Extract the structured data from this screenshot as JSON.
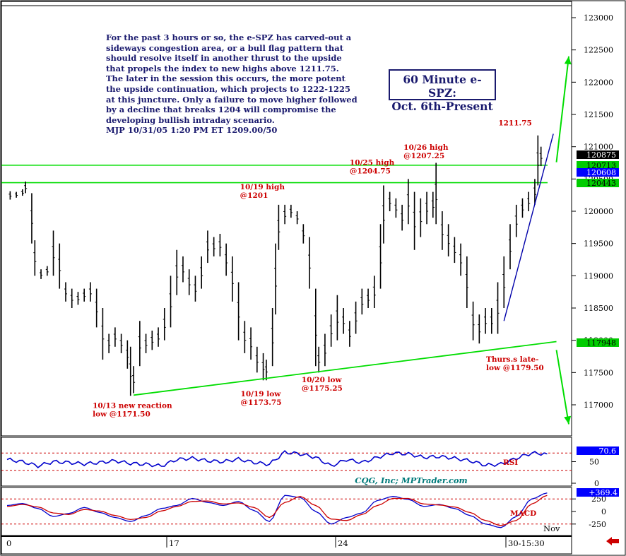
{
  "commentary": {
    "text": "For the past 3 hours or so, the e-SPZ has carved-out a\nsideways congestion area, or a bull flag pattern that\nshould resolve itself in another thrust to the upside\nthat propels the index to new highs above 1211.75.\nThe later in the session this occurs, the more potent\nthe upside continuation, which projects to 1222-1225\nat this juncture. Only a failure to move higher followed\nby a decline that breaks 1204 will compromise the\ndeveloping bullish intraday scenario.\nMJP  10/31/05 1:20 PM ET 1209.00/50"
  },
  "title_box": {
    "line1": "60 Minute e-SPZ:",
    "line2": "Oct. 6th-Present"
  },
  "credit": "CQG, Inc; MPTrader.com",
  "colors": {
    "price_bars": "#000000",
    "trendline_green": "#00dd00",
    "trendline_blue": "#0000aa",
    "annotation_red": "#cc0000",
    "rsi_line": "#0000cc",
    "macd_line": "#0000cc",
    "macd_signal": "#cc0000",
    "label_black": "#000000",
    "label_green": "#00cc00",
    "label_blue": "#0000ff",
    "axis_border": "#000000"
  },
  "chart_data": [
    {
      "type": "ohlc",
      "name": "60 Minute e-SPZ",
      "yaxis": {
        "ylim": [
          116800,
          123200
        ],
        "ticks": [
          117000,
          117500,
          118000,
          118500,
          119000,
          119500,
          120000,
          120500,
          121000,
          121500,
          122000,
          122500,
          123000
        ],
        "tick_labels": [
          "117000",
          "117500",
          "118000",
          "118500",
          "119000",
          "119500",
          "120000",
          "120500",
          "121000",
          "121500",
          "122000",
          "122500",
          "123000"
        ]
      },
      "xaxis": {
        "tick_labels": [
          "0",
          "17",
          "24",
          "30-15:30",
          "Nov"
        ],
        "range": [
          0,
          182
        ]
      },
      "bars": [
        {
          "x": 1,
          "h": 120310,
          "l": 120180
        },
        {
          "x": 3,
          "h": 120300,
          "l": 120210
        },
        {
          "x": 5,
          "h": 120340,
          "l": 120240
        },
        {
          "x": 6,
          "h": 120460,
          "l": 120280
        },
        {
          "x": 8,
          "h": 120280,
          "l": 119500
        },
        {
          "x": 9,
          "h": 119550,
          "l": 119000
        },
        {
          "x": 11,
          "h": 119100,
          "l": 118950
        },
        {
          "x": 13,
          "h": 119150,
          "l": 119000
        },
        {
          "x": 15,
          "h": 119700,
          "l": 119000
        },
        {
          "x": 17,
          "h": 119500,
          "l": 118800
        },
        {
          "x": 19,
          "h": 118900,
          "l": 118600
        },
        {
          "x": 21,
          "h": 118800,
          "l": 118500
        },
        {
          "x": 23,
          "h": 118750,
          "l": 118550
        },
        {
          "x": 25,
          "h": 118800,
          "l": 118600
        },
        {
          "x": 27,
          "h": 118900,
          "l": 118600
        },
        {
          "x": 29,
          "h": 118800,
          "l": 118200
        },
        {
          "x": 31,
          "h": 118500,
          "l": 117700
        },
        {
          "x": 33,
          "h": 118100,
          "l": 117800
        },
        {
          "x": 35,
          "h": 118200,
          "l": 117900
        },
        {
          "x": 37,
          "h": 118100,
          "l": 117800
        },
        {
          "x": 39,
          "h": 118000,
          "l": 117560
        },
        {
          "x": 40,
          "h": 117900,
          "l": 117140
        },
        {
          "x": 41,
          "h": 117600,
          "l": 117180
        },
        {
          "x": 43,
          "h": 118300,
          "l": 117600
        },
        {
          "x": 45,
          "h": 118100,
          "l": 117800
        },
        {
          "x": 47,
          "h": 118150,
          "l": 117850
        },
        {
          "x": 49,
          "h": 118200,
          "l": 117900
        },
        {
          "x": 51,
          "h": 118500,
          "l": 118000
        },
        {
          "x": 53,
          "h": 119000,
          "l": 118200
        },
        {
          "x": 55,
          "h": 119400,
          "l": 118700
        },
        {
          "x": 57,
          "h": 119300,
          "l": 118900
        },
        {
          "x": 59,
          "h": 119100,
          "l": 118700
        },
        {
          "x": 61,
          "h": 119000,
          "l": 118600
        },
        {
          "x": 63,
          "h": 119300,
          "l": 118800
        },
        {
          "x": 65,
          "h": 119700,
          "l": 119200
        },
        {
          "x": 67,
          "h": 119600,
          "l": 119300
        },
        {
          "x": 69,
          "h": 119650,
          "l": 119300
        },
        {
          "x": 71,
          "h": 119500,
          "l": 119000
        },
        {
          "x": 73,
          "h": 119300,
          "l": 118600
        },
        {
          "x": 75,
          "h": 118900,
          "l": 118000
        },
        {
          "x": 77,
          "h": 118300,
          "l": 117800
        },
        {
          "x": 79,
          "h": 118200,
          "l": 117700
        },
        {
          "x": 81,
          "h": 117900,
          "l": 117500
        },
        {
          "x": 83,
          "h": 117800,
          "l": 117380
        },
        {
          "x": 84,
          "h": 117700,
          "l": 117380
        },
        {
          "x": 86,
          "h": 118500,
          "l": 117600
        },
        {
          "x": 87,
          "h": 119500,
          "l": 118400
        },
        {
          "x": 88,
          "h": 120100,
          "l": 119400
        },
        {
          "x": 90,
          "h": 120100,
          "l": 119800
        },
        {
          "x": 92,
          "h": 120100,
          "l": 119900
        },
        {
          "x": 94,
          "h": 120000,
          "l": 119800
        },
        {
          "x": 96,
          "h": 119800,
          "l": 119500
        },
        {
          "x": 98,
          "h": 119600,
          "l": 118800
        },
        {
          "x": 100,
          "h": 118800,
          "l": 117600
        },
        {
          "x": 101,
          "h": 117900,
          "l": 117500
        },
        {
          "x": 103,
          "h": 118100,
          "l": 117600
        },
        {
          "x": 105,
          "h": 118400,
          "l": 117900
        },
        {
          "x": 107,
          "h": 118700,
          "l": 118000
        },
        {
          "x": 109,
          "h": 118500,
          "l": 118100
        },
        {
          "x": 111,
          "h": 118300,
          "l": 117900
        },
        {
          "x": 113,
          "h": 118600,
          "l": 118100
        },
        {
          "x": 115,
          "h": 118800,
          "l": 118400
        },
        {
          "x": 117,
          "h": 118800,
          "l": 118500
        },
        {
          "x": 119,
          "h": 119000,
          "l": 118500
        },
        {
          "x": 121,
          "h": 119800,
          "l": 118800
        },
        {
          "x": 122,
          "h": 120400,
          "l": 119500
        },
        {
          "x": 124,
          "h": 120300,
          "l": 120000
        },
        {
          "x": 126,
          "h": 120200,
          "l": 119900
        },
        {
          "x": 128,
          "h": 120100,
          "l": 119700
        },
        {
          "x": 130,
          "h": 120500,
          "l": 119800
        },
        {
          "x": 132,
          "h": 120300,
          "l": 119400
        },
        {
          "x": 134,
          "h": 120200,
          "l": 119600
        },
        {
          "x": 136,
          "h": 120300,
          "l": 119800
        },
        {
          "x": 138,
          "h": 120300,
          "l": 119900
        },
        {
          "x": 139,
          "h": 120750,
          "l": 119800
        },
        {
          "x": 141,
          "h": 120000,
          "l": 119400
        },
        {
          "x": 143,
          "h": 119800,
          "l": 119300
        },
        {
          "x": 145,
          "h": 119600,
          "l": 119200
        },
        {
          "x": 147,
          "h": 119500,
          "l": 119000
        },
        {
          "x": 149,
          "h": 119300,
          "l": 118500
        },
        {
          "x": 151,
          "h": 118600,
          "l": 118000
        },
        {
          "x": 153,
          "h": 118400,
          "l": 117950
        },
        {
          "x": 155,
          "h": 118500,
          "l": 118100
        },
        {
          "x": 157,
          "h": 118500,
          "l": 118100
        },
        {
          "x": 159,
          "h": 118900,
          "l": 118100
        },
        {
          "x": 161,
          "h": 119300,
          "l": 118500
        },
        {
          "x": 163,
          "h": 119800,
          "l": 119100
        },
        {
          "x": 165,
          "h": 120100,
          "l": 119600
        },
        {
          "x": 167,
          "h": 120200,
          "l": 119900
        },
        {
          "x": 169,
          "h": 120300,
          "l": 120000
        },
        {
          "x": 171,
          "h": 120500,
          "l": 120100
        },
        {
          "x": 172,
          "h": 121175,
          "l": 120400
        },
        {
          "x": 173,
          "h": 121000,
          "l": 120700
        }
      ],
      "annotations": [
        {
          "text": "10/13  new reaction",
          "text2": "low @1171.50",
          "x": 41,
          "y": 117150
        },
        {
          "text": "10/19 high",
          "text2": "@1201",
          "x": 86,
          "y": 120100
        },
        {
          "text": "10/19 low",
          "text2": "@1173.75",
          "x": 83,
          "y": 117375
        },
        {
          "text": "10/20 low",
          "text2": "@1175.25",
          "x": 100,
          "y": 117525
        },
        {
          "text": "10/25 high",
          "text2": "@1204.75",
          "x": 122,
          "y": 120475
        },
        {
          "text": "10/26 high",
          "text2": "@1207.25",
          "x": 139,
          "y": 120725
        },
        {
          "text": "Thurs.s late-",
          "text2": "low @1179.50",
          "x": 155,
          "y": 117950
        },
        {
          "text": "1211.75",
          "text2": "",
          "x": 172,
          "y": 121175
        }
      ],
      "price_labels": [
        {
          "value": "120875",
          "y": 120875,
          "style": "black"
        },
        {
          "value": "120713",
          "y": 120713,
          "style": "green"
        },
        {
          "value": "120608",
          "y": 120608,
          "style": "blue"
        },
        {
          "value": "120443",
          "y": 120443,
          "style": "green"
        },
        {
          "value": "117948",
          "y": 117948,
          "style": "green"
        }
      ],
      "horizontal_lines": [
        120713,
        120443
      ],
      "trendlines": [
        {
          "from": [
            41,
            117150
          ],
          "to": [
            178,
            117980
          ],
          "color": "green"
        },
        {
          "from": [
            161,
            118300
          ],
          "to": [
            177,
            121200
          ],
          "color": "blue"
        }
      ],
      "arrows": [
        {
          "from": [
            178,
            120760
          ],
          "to": [
            182,
            122400
          ],
          "color": "green"
        },
        {
          "from": [
            178,
            117850
          ],
          "to": [
            182,
            116700
          ],
          "color": "green"
        }
      ]
    },
    {
      "type": "line",
      "name": "RSI",
      "label": "RSI",
      "ylim": [
        0,
        100
      ],
      "ticks": [
        50,
        0
      ],
      "current_value": "70.6",
      "levels": [
        70,
        30
      ],
      "x": [
        0,
        5,
        10,
        15,
        20,
        25,
        30,
        35,
        40,
        45,
        50,
        55,
        60,
        65,
        70,
        75,
        80,
        85,
        90,
        95,
        100,
        105,
        110,
        115,
        120,
        125,
        130,
        135,
        140,
        145,
        150,
        155,
        160,
        165,
        170,
        175
      ],
      "values": [
        55,
        50,
        40,
        50,
        48,
        45,
        48,
        52,
        46,
        44,
        40,
        55,
        58,
        52,
        50,
        56,
        48,
        44,
        72,
        68,
        60,
        40,
        55,
        48,
        60,
        70,
        68,
        60,
        62,
        58,
        52,
        42,
        44,
        58,
        70,
        68
      ]
    },
    {
      "type": "line",
      "name": "MACD",
      "label": "MACD",
      "ylim": [
        -450,
        450
      ],
      "ticks": [
        250,
        0,
        -250
      ],
      "tick_labels": [
        "250",
        "0",
        "-250"
      ],
      "current_value": "+369.4",
      "x": [
        0,
        5,
        10,
        15,
        20,
        25,
        30,
        35,
        40,
        45,
        50,
        55,
        60,
        65,
        70,
        75,
        80,
        85,
        90,
        95,
        100,
        105,
        110,
        115,
        120,
        125,
        130,
        135,
        140,
        145,
        150,
        155,
        160,
        165,
        170,
        175
      ],
      "series": [
        {
          "name": "MACD",
          "values": [
            120,
            160,
            60,
            -100,
            -40,
            80,
            -20,
            -120,
            -200,
            -80,
            60,
            120,
            260,
            180,
            120,
            200,
            20,
            -200,
            320,
            280,
            0,
            -250,
            -120,
            -30,
            220,
            300,
            240,
            100,
            140,
            60,
            -80,
            -250,
            -320,
            -100,
            250,
            369
          ]
        },
        {
          "name": "Signal",
          "values": [
            100,
            140,
            90,
            -30,
            -60,
            40,
            10,
            -80,
            -160,
            -120,
            10,
            100,
            200,
            210,
            150,
            170,
            80,
            -120,
            180,
            300,
            120,
            -150,
            -180,
            -60,
            120,
            260,
            260,
            150,
            130,
            90,
            -20,
            -180,
            -280,
            -180,
            150,
            320
          ]
        }
      ]
    }
  ]
}
